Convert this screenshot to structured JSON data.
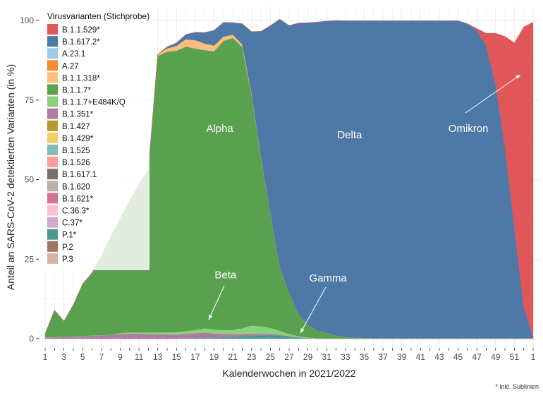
{
  "chart_data": {
    "type": "area",
    "stacked": true,
    "ylabel": "Anteil an SARS-CoV-2 detektierten Varianten (in %)",
    "xlabel": "Kalenderwochen in 2021/2022",
    "footnote": "* inkl. Sublinien",
    "ylim": [
      0,
      100
    ],
    "yticks": [
      0,
      25,
      50,
      75,
      100
    ],
    "x": [
      "1",
      "2",
      "3",
      "4",
      "5",
      "6",
      "7",
      "8",
      "9",
      "10",
      "11",
      "12",
      "13",
      "14",
      "15",
      "16",
      "17",
      "18",
      "19",
      "20",
      "21",
      "22",
      "23",
      "24",
      "25",
      "26",
      "27",
      "28",
      "29",
      "30",
      "31",
      "32",
      "33",
      "34",
      "35",
      "36",
      "37",
      "38",
      "39",
      "40",
      "41",
      "42",
      "43",
      "44",
      "45",
      "46",
      "47",
      "48",
      "49",
      "50",
      "51",
      "52",
      "1"
    ],
    "xtick_labels": [
      "1",
      "3",
      "5",
      "7",
      "9",
      "11",
      "13",
      "15",
      "17",
      "19",
      "21",
      "23",
      "25",
      "27",
      "29",
      "31",
      "33",
      "35",
      "37",
      "39",
      "41",
      "43",
      "45",
      "47",
      "49",
      "51",
      "1"
    ],
    "grid": true,
    "legend": {
      "title": "Virusvarianten (Stichprobe)",
      "position": "top-left-inside",
      "entries": [
        {
          "name": "B.1.1.529*",
          "color": "#e15759"
        },
        {
          "name": "B.1.617.2*",
          "color": "#4e79a7"
        },
        {
          "name": "A.23.1",
          "color": "#a0cbe8"
        },
        {
          "name": "A.27",
          "color": "#f28e2b"
        },
        {
          "name": "B.1.1.318*",
          "color": "#ffbe7d"
        },
        {
          "name": "B.1.1.7*",
          "color": "#59a14f"
        },
        {
          "name": "B.1.1.7+E484K/Q",
          "color": "#8cd17d"
        },
        {
          "name": "B.1.351*",
          "color": "#b07aa1"
        },
        {
          "name": "B.1.427",
          "color": "#b6992d"
        },
        {
          "name": "B.1.429*",
          "color": "#f1ce63"
        },
        {
          "name": "B.1.525",
          "color": "#86bcb6"
        },
        {
          "name": "B.1.526",
          "color": "#ff9d9a"
        },
        {
          "name": "B.1.617.1",
          "color": "#79706e"
        },
        {
          "name": "B.1.620",
          "color": "#bab0ac"
        },
        {
          "name": "B.1.621*",
          "color": "#d37295"
        },
        {
          "name": "C.36.3*",
          "color": "#fabfd2"
        },
        {
          "name": "C.37*",
          "color": "#d4a6c8"
        },
        {
          "name": "P.1*",
          "color": "#499894"
        },
        {
          "name": "P.2",
          "color": "#9d7660"
        },
        {
          "name": "P.3",
          "color": "#d7b5a6"
        }
      ]
    },
    "series": [
      {
        "name": "P.1*",
        "color": "#499894",
        "values": [
          0,
          0,
          0,
          0,
          0,
          0,
          0,
          0,
          0,
          0,
          0,
          0,
          0,
          0,
          0,
          0.1,
          0.2,
          0.3,
          0.3,
          0.4,
          0.5,
          0.7,
          0.9,
          1.0,
          1.1,
          0.9,
          0.6,
          0.3,
          0.1,
          0,
          0,
          0,
          0,
          0,
          0,
          0,
          0,
          0,
          0,
          0,
          0,
          0,
          0,
          0,
          0,
          0,
          0,
          0,
          0,
          0,
          0,
          0,
          0
        ]
      },
      {
        "name": "B.1.351*",
        "color": "#b07aa1",
        "values": [
          0.3,
          0.5,
          0.5,
          0.6,
          0.8,
          0.9,
          1.0,
          1.2,
          1.5,
          1.6,
          1.5,
          1.4,
          1.4,
          1.3,
          1.3,
          1.4,
          1.5,
          1.6,
          1.3,
          1.1,
          0.9,
          0.7,
          0.6,
          0.5,
          0.4,
          0.3,
          0.2,
          0.1,
          0.1,
          0,
          0,
          0,
          0,
          0,
          0,
          0,
          0,
          0,
          0,
          0,
          0,
          0,
          0,
          0,
          0,
          0,
          0,
          0,
          0,
          0,
          0,
          0,
          0
        ]
      },
      {
        "name": "B.1.1.7+E484K/Q",
        "color": "#8cd17d",
        "values": [
          0,
          0,
          0,
          0,
          0,
          0,
          0,
          0,
          0.2,
          0.3,
          0.4,
          0.5,
          0.5,
          0.6,
          0.7,
          0.8,
          1.0,
          1.3,
          1.2,
          1.1,
          1.3,
          1.8,
          2.5,
          2.3,
          1.8,
          1.2,
          0.6,
          0.3,
          0.1,
          0,
          0,
          0,
          0,
          0,
          0,
          0,
          0,
          0,
          0,
          0,
          0,
          0,
          0,
          0,
          0,
          0,
          0,
          0,
          0,
          0,
          0,
          0,
          0
        ]
      },
      {
        "name": "B.1.1.7*",
        "color": "#59a14f",
        "values": [
          1.2,
          8.5,
          5.0,
          10.0,
          16.4,
          19.8,
          25.0,
          31.0,
          36.0,
          41.5,
          46.5,
          51.0,
          87.0,
          88.3,
          88.5,
          89.5,
          88.5,
          87.5,
          87.5,
          91.0,
          91.8,
          88.5,
          72.5,
          53.0,
          36.0,
          20.0,
          13.0,
          7.0,
          4.0,
          2.5,
          1.8,
          1.0,
          0.5,
          0.3,
          0.2,
          0.1,
          0.1,
          0,
          0,
          0,
          0,
          0,
          0,
          0,
          0,
          0,
          0,
          0,
          0,
          0,
          0,
          0,
          0
        ]
      },
      {
        "name": "B.1.1.318*",
        "color": "#ffbe7d",
        "values": [
          0,
          0,
          0,
          0,
          0,
          0,
          0,
          0,
          0,
          0,
          0,
          0.2,
          0.5,
          1.0,
          1.5,
          2.3,
          2.6,
          2.0,
          1.8,
          1.3,
          1.0,
          0.8,
          0.5,
          0.3,
          0.1,
          0,
          0,
          0,
          0,
          0,
          0,
          0,
          0,
          0,
          0,
          0,
          0,
          0,
          0,
          0,
          0,
          0,
          0,
          0,
          0,
          0,
          0,
          0,
          0,
          0,
          0,
          0,
          0
        ]
      },
      {
        "name": "B.1.617.2*",
        "color": "#4e79a7",
        "values": [
          0,
          0,
          0,
          0,
          0,
          0,
          0,
          0,
          0,
          0,
          0,
          0,
          0,
          0.5,
          1.0,
          1.5,
          2.5,
          3.5,
          4.8,
          4.5,
          3.8,
          6.5,
          19.5,
          39.5,
          59.0,
          78.0,
          84.0,
          91.5,
          95.0,
          97.0,
          98.0,
          99.0,
          99.4,
          99.6,
          99.7,
          99.8,
          99.8,
          99.9,
          99.9,
          99.9,
          99.9,
          99.9,
          99.9,
          99.9,
          99.9,
          99.0,
          97.0,
          92.0,
          80.0,
          60.0,
          35.0,
          10.0,
          0.5
        ]
      },
      {
        "name": "B.1.1.529*",
        "color": "#e15759",
        "values": [
          0,
          0,
          0,
          0,
          0,
          0,
          0,
          0,
          0,
          0,
          0,
          0,
          0,
          0,
          0,
          0,
          0,
          0,
          0,
          0,
          0,
          0,
          0,
          0,
          0,
          0,
          0,
          0,
          0,
          0,
          0,
          0,
          0,
          0,
          0,
          0,
          0,
          0,
          0,
          0,
          0,
          0,
          0,
          0,
          0,
          0,
          0.5,
          4.0,
          16.0,
          35.0,
          58.0,
          88.0,
          99.0
        ]
      }
    ],
    "annotations": [
      {
        "text": "Alpha",
        "x": "19",
        "y": 65
      },
      {
        "text": "Delta",
        "x": "33",
        "y": 63
      },
      {
        "text": "Omikron",
        "x": "47",
        "y": 65
      },
      {
        "text": "Beta",
        "x": "20",
        "y": 19
      },
      {
        "text": "Gamma",
        "x": "31",
        "y": 18
      }
    ]
  }
}
